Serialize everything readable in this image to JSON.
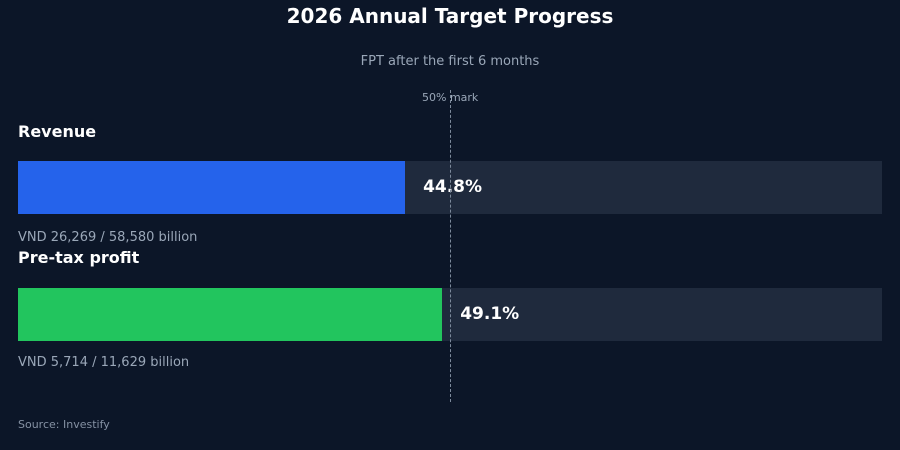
{
  "title": "2026 Annual Target Progress",
  "subtitle": "FPT after the first 6 months",
  "mark_label": "50% mark",
  "source": "Source: Investify",
  "colors": {
    "background": "#0c1628",
    "track": "#1f2a3d",
    "revenue": "#2563eb",
    "profit": "#22c55e"
  },
  "metrics": [
    {
      "label": "Revenue",
      "percent_text": "44.8%",
      "detail": "VND 26,269 / 58,580 billion"
    },
    {
      "label": "Pre-tax profit",
      "percent_text": "49.1%",
      "detail": "VND 5,714 / 11,629 billion"
    }
  ],
  "chart_data": {
    "type": "bar",
    "orientation": "horizontal",
    "title": "2026 Annual Target Progress",
    "subtitle": "FPT after the first 6 months",
    "categories": [
      "Revenue",
      "Pre-tax profit"
    ],
    "values": [
      44.8,
      49.1
    ],
    "unit": "%",
    "xlim": [
      0,
      100
    ],
    "reference_line": {
      "value": 50,
      "label": "50% mark"
    },
    "actuals": [
      26269,
      5714
    ],
    "targets": [
      58580,
      11629
    ],
    "grid": false,
    "legend": false
  }
}
